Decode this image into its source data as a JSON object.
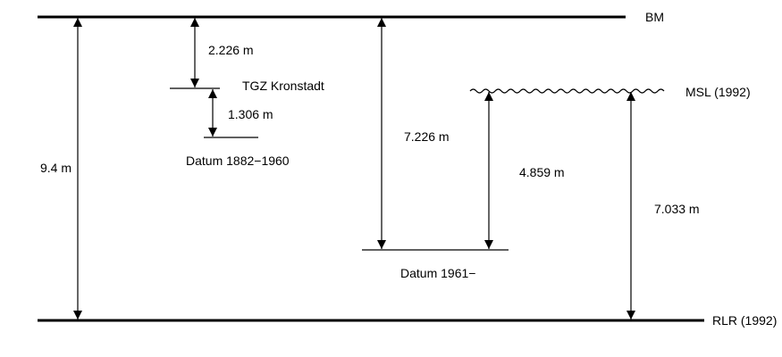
{
  "diagram": {
    "levels": {
      "bm": "BM",
      "msl": "MSL (1992)",
      "rlr": "RLR (1992)",
      "tgz": "TGZ Kronstadt",
      "datum_old": "Datum 1882−1960",
      "datum_new": "Datum 1961−"
    },
    "measurements": {
      "bm_to_rlr": "9.4 m",
      "bm_to_tgz": "2.226 m",
      "tgz_to_datum_old": "1.306 m",
      "bm_to_datum_new": "7.226 m",
      "msl_to_datum_new": "4.859 m",
      "msl_to_rlr": "7.033 m"
    },
    "colors": {
      "line": "#000000",
      "background": "#ffffff"
    }
  }
}
